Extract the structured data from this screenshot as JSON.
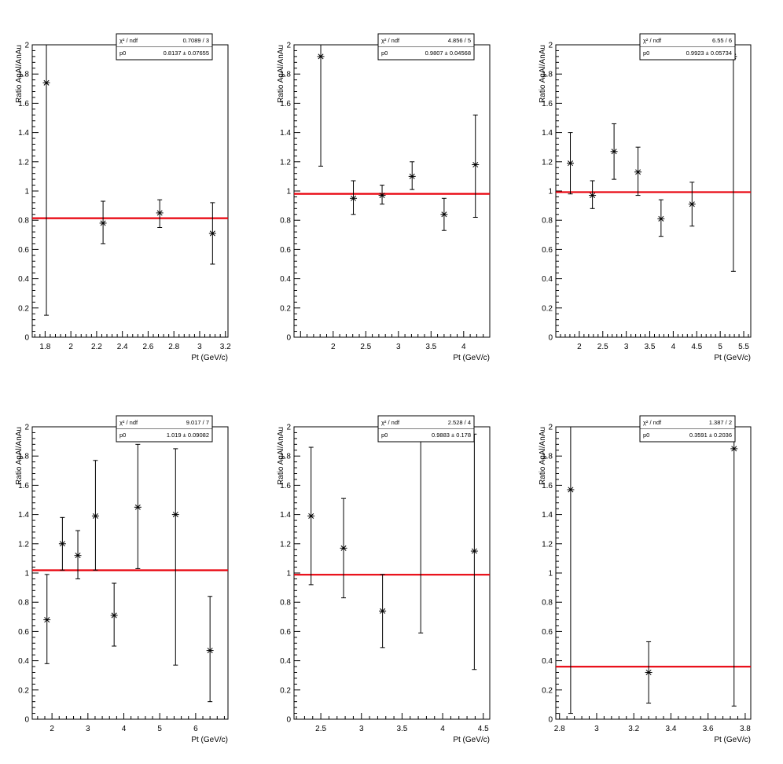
{
  "chart_data": [
    {
      "type": "scatter",
      "xlabel": "Pt (GeV/c)",
      "ylabel": "Ratio AgAl/AnAu",
      "xlim": [
        1.7,
        3.22
      ],
      "ylim": [
        0,
        2
      ],
      "x_ticks": [
        "1.8",
        "2",
        "2.2",
        "2.4",
        "2.6",
        "2.8",
        "3",
        "3.2"
      ],
      "y_ticks": [
        "0",
        "0.2",
        "0.4",
        "0.6",
        "0.8",
        "1",
        "1.2",
        "1.4",
        "1.6",
        "1.8",
        "2"
      ],
      "points": [
        {
          "x": 1.81,
          "y": 1.74,
          "ylo": 0.15,
          "yhi": 2.0
        },
        {
          "x": 2.25,
          "y": 0.78,
          "ylo": 0.64,
          "yhi": 0.93
        },
        {
          "x": 2.69,
          "y": 0.85,
          "ylo": 0.75,
          "yhi": 0.94
        },
        {
          "x": 3.1,
          "y": 0.71,
          "ylo": 0.5,
          "yhi": 0.92
        }
      ],
      "fit": {
        "p0": 0.8137
      },
      "stats": {
        "chi2_label": "χ² / ndf",
        "chi2_value": "0.7089 / 3",
        "p0_label": "p0",
        "p0_value": "0.8137 ± 0.07655"
      }
    },
    {
      "type": "scatter",
      "xlabel": "Pt (GeV/c)",
      "ylabel": "Ratio AgAl/AnAu",
      "xlim": [
        1.4,
        4.4
      ],
      "ylim": [
        0,
        2
      ],
      "x_ticks": [
        "2",
        "2.5",
        "3",
        "3.5",
        "4"
      ],
      "y_ticks": [
        "0",
        "0.2",
        "0.4",
        "0.6",
        "0.8",
        "1",
        "1.2",
        "1.4",
        "1.6",
        "1.8",
        "2"
      ],
      "points": [
        {
          "x": 1.81,
          "y": 1.92,
          "ylo": 1.17,
          "yhi": 2.0
        },
        {
          "x": 2.31,
          "y": 0.95,
          "ylo": 0.84,
          "yhi": 1.07
        },
        {
          "x": 2.75,
          "y": 0.97,
          "ylo": 0.91,
          "yhi": 1.04
        },
        {
          "x": 3.21,
          "y": 1.1,
          "ylo": 1.01,
          "yhi": 1.2
        },
        {
          "x": 3.7,
          "y": 0.84,
          "ylo": 0.73,
          "yhi": 0.95
        },
        {
          "x": 4.18,
          "y": 1.18,
          "ylo": 0.82,
          "yhi": 1.52
        }
      ],
      "fit": {
        "p0": 0.9807
      },
      "stats": {
        "chi2_label": "χ² / ndf",
        "chi2_value": "4.856 / 5",
        "p0_label": "p0",
        "p0_value": "0.9807 ± 0.04568"
      }
    },
    {
      "type": "scatter",
      "xlabel": "Pt (GeV/c)",
      "ylabel": "Ratio AgAl/AnAu",
      "xlim": [
        1.5,
        5.65
      ],
      "ylim": [
        0,
        2
      ],
      "x_ticks": [
        "2",
        "2.5",
        "3",
        "3.5",
        "4",
        "4.5",
        "5",
        "5.5"
      ],
      "y_ticks": [
        "0",
        "0.2",
        "0.4",
        "0.6",
        "0.8",
        "1",
        "1.2",
        "1.4",
        "1.6",
        "1.8",
        "2"
      ],
      "points": [
        {
          "x": 1.81,
          "y": 1.19,
          "ylo": 0.98,
          "yhi": 1.4
        },
        {
          "x": 2.28,
          "y": 0.97,
          "ylo": 0.88,
          "yhi": 1.07
        },
        {
          "x": 2.74,
          "y": 1.27,
          "ylo": 1.08,
          "yhi": 1.46
        },
        {
          "x": 3.25,
          "y": 1.13,
          "ylo": 0.97,
          "yhi": 1.3
        },
        {
          "x": 3.74,
          "y": 0.81,
          "ylo": 0.69,
          "yhi": 0.94
        },
        {
          "x": 4.4,
          "y": 0.91,
          "ylo": 0.76,
          "yhi": 1.06
        },
        {
          "x": 5.28,
          "y": 1.92,
          "ylo": 0.45,
          "yhi": 2.0
        }
      ],
      "fit": {
        "p0": 0.9923
      },
      "stats": {
        "chi2_label": "χ² / ndf",
        "chi2_value": "6.55 / 6",
        "p0_label": "p0",
        "p0_value": "0.9923 ± 0.05734"
      }
    },
    {
      "type": "scatter",
      "xlabel": "Pt (GeV/c)",
      "ylabel": "Ratio AgAl/AnAu",
      "xlim": [
        1.45,
        6.9
      ],
      "ylim": [
        0,
        2
      ],
      "x_ticks": [
        "2",
        "3",
        "4",
        "5",
        "6"
      ],
      "y_ticks": [
        "0",
        "0.2",
        "0.4",
        "0.6",
        "0.8",
        "1",
        "1.2",
        "1.4",
        "1.6",
        "1.8",
        "2"
      ],
      "points": [
        {
          "x": 1.86,
          "y": 0.68,
          "ylo": 0.38,
          "yhi": 0.99
        },
        {
          "x": 2.29,
          "y": 1.2,
          "ylo": 1.02,
          "yhi": 1.38
        },
        {
          "x": 2.72,
          "y": 1.12,
          "ylo": 0.96,
          "yhi": 1.29
        },
        {
          "x": 3.21,
          "y": 1.39,
          "ylo": 1.02,
          "yhi": 1.77
        },
        {
          "x": 3.73,
          "y": 0.71,
          "ylo": 0.5,
          "yhi": 0.93
        },
        {
          "x": 4.39,
          "y": 1.45,
          "ylo": 1.03,
          "yhi": 1.88
        },
        {
          "x": 5.44,
          "y": 1.4,
          "ylo": 0.37,
          "yhi": 1.85
        },
        {
          "x": 6.4,
          "y": 0.47,
          "ylo": 0.12,
          "yhi": 0.84
        }
      ],
      "fit": {
        "p0": 1.019
      },
      "stats": {
        "chi2_label": "χ² / ndf",
        "chi2_value": "9.017 / 7",
        "p0_label": "p0",
        "p0_value": "1.019 ± 0.09082"
      }
    },
    {
      "type": "scatter",
      "xlabel": "Pt (GeV/c)",
      "ylabel": "Ratio AgAl/AnAu",
      "xlim": [
        2.17,
        4.58
      ],
      "ylim": [
        0,
        2
      ],
      "x_ticks": [
        "2.5",
        "3",
        "3.5",
        "4",
        "4.5"
      ],
      "y_ticks": [
        "0",
        "0.2",
        "0.4",
        "0.6",
        "0.8",
        "1",
        "1.2",
        "1.4",
        "1.6",
        "1.8",
        "2"
      ],
      "points": [
        {
          "x": 2.38,
          "y": 1.39,
          "ylo": 0.92,
          "yhi": 1.86
        },
        {
          "x": 2.78,
          "y": 1.17,
          "ylo": 0.83,
          "yhi": 1.51
        },
        {
          "x": 3.26,
          "y": 0.74,
          "ylo": 0.49,
          "yhi": 0.99
        },
        {
          "x": 3.73,
          "y": 2.0,
          "ylo": 0.59,
          "yhi": 2.0
        },
        {
          "x": 4.39,
          "y": 1.15,
          "ylo": 0.34,
          "yhi": 1.95
        }
      ],
      "fit": {
        "p0": 0.9883
      },
      "stats": {
        "chi2_label": "χ² / ndf",
        "chi2_value": "2.528 / 4",
        "p0_label": "p0",
        "p0_value": "0.9883 ± 0.178"
      }
    },
    {
      "type": "scatter",
      "xlabel": "Pt (GeV/c)",
      "ylabel": "Ratio AgAl/AnAu",
      "xlim": [
        2.78,
        3.83
      ],
      "ylim": [
        0,
        2
      ],
      "x_ticks": [
        "2.8",
        "3",
        "3.2",
        "3.4",
        "3.6",
        "3.8"
      ],
      "y_ticks": [
        "0",
        "0.2",
        "0.4",
        "0.6",
        "0.8",
        "1",
        "1.2",
        "1.4",
        "1.6",
        "1.8",
        "2"
      ],
      "points": [
        {
          "x": 2.86,
          "y": 1.57,
          "ylo": 0.04,
          "yhi": 2.0
        },
        {
          "x": 3.28,
          "y": 0.32,
          "ylo": 0.11,
          "yhi": 0.53
        },
        {
          "x": 3.74,
          "y": 1.85,
          "ylo": 0.09,
          "yhi": 2.0
        }
      ],
      "fit": {
        "p0": 0.3591
      },
      "stats": {
        "chi2_label": "χ² / ndf",
        "chi2_value": "1.387 / 2",
        "p0_label": "p0",
        "p0_value": "0.3591 ± 0.2036"
      }
    }
  ],
  "colors": {
    "fit_line": "#e8000b",
    "marker": "#000000",
    "axis": "#000000"
  }
}
